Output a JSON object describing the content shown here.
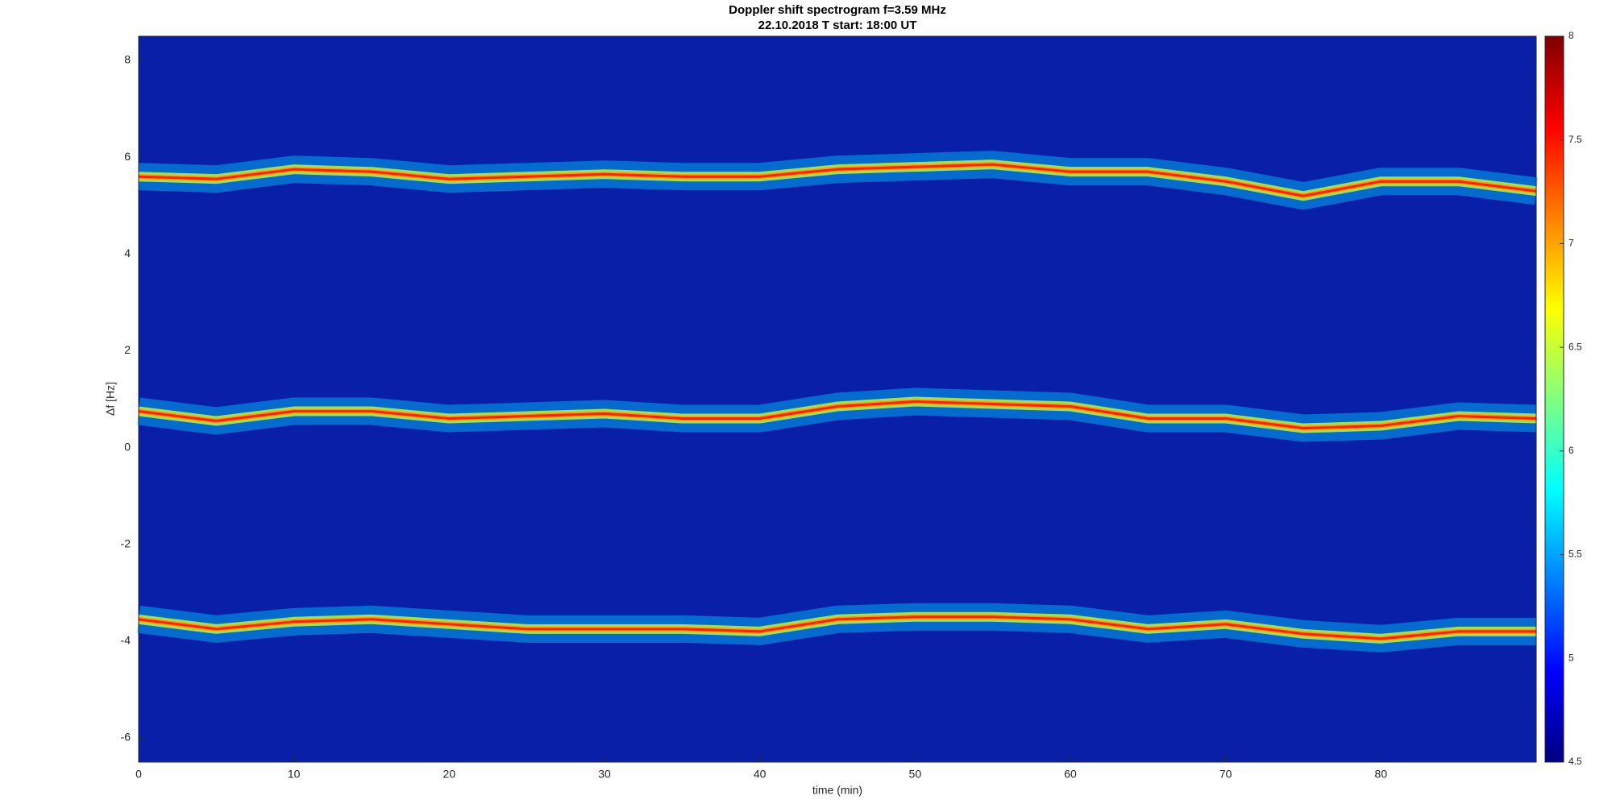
{
  "chart_data": {
    "type": "spectrogram",
    "title": "Doppler shift spectrogram f=3.59 MHz",
    "subtitle": "22.10.2018   T start: 18:00 UT",
    "x_label": "time (min)",
    "y_label": "Δf [Hz]",
    "x": [
      0,
      5,
      10,
      15,
      20,
      25,
      30,
      35,
      40,
      45,
      50,
      55,
      60,
      65,
      70,
      75,
      80,
      85,
      90
    ],
    "series": [
      {
        "color": "#ff2000",
        "values": [
          5.6,
          5.55,
          5.75,
          5.7,
          5.55,
          5.6,
          5.65,
          5.6,
          5.6,
          5.75,
          5.8,
          5.85,
          5.7,
          5.7,
          5.5,
          5.2,
          5.5,
          5.5,
          5.3
        ]
      },
      {
        "color": "#ff2000",
        "values": [
          0.75,
          0.55,
          0.75,
          0.75,
          0.6,
          0.65,
          0.7,
          0.6,
          0.6,
          0.85,
          0.95,
          0.9,
          0.85,
          0.6,
          0.6,
          0.4,
          0.45,
          0.65,
          0.6
        ]
      },
      {
        "color": "#ff2000",
        "values": [
          -3.55,
          -3.75,
          -3.6,
          -3.55,
          -3.65,
          -3.75,
          -3.75,
          -3.75,
          -3.8,
          -3.55,
          -3.5,
          -3.5,
          -3.55,
          -3.75,
          -3.65,
          -3.85,
          -3.95,
          -3.8,
          -3.8
        ]
      }
    ],
    "xlim": [
      0,
      90
    ],
    "xticks": [
      0,
      10,
      20,
      30,
      40,
      50,
      60,
      70,
      80
    ],
    "ylim": [
      -6.5,
      8.5
    ],
    "yticks": [
      -6,
      -4,
      -2,
      0,
      2,
      4,
      6,
      8
    ],
    "colormap": "jet",
    "clim": [
      4.5,
      8
    ],
    "cticks": [
      4.5,
      5,
      5.5,
      6,
      6.5,
      7,
      7.5,
      8
    ]
  }
}
